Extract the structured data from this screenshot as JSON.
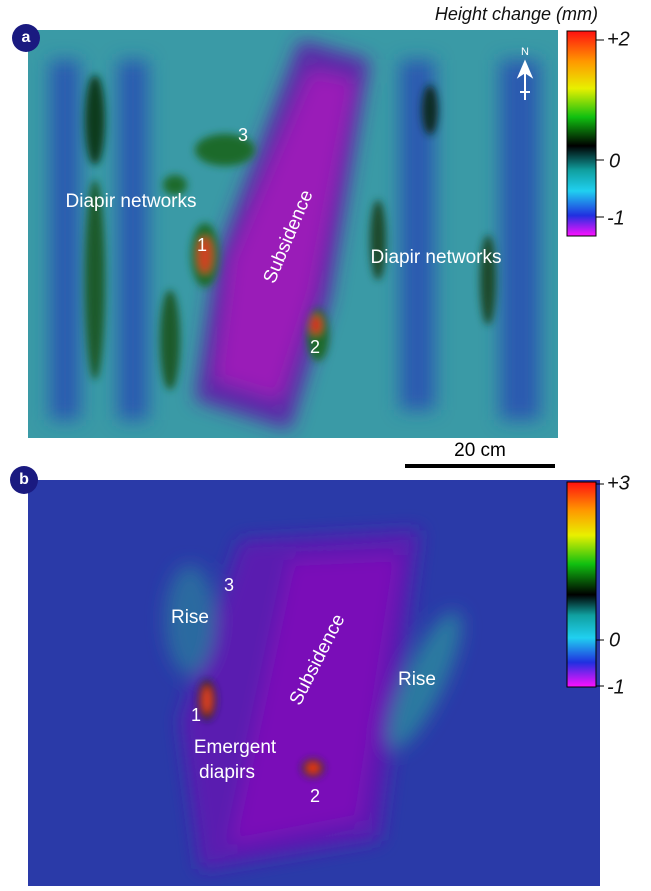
{
  "figure": {
    "legend_title": "Height change (mm)",
    "scale_bar": "20 cm"
  },
  "panels": [
    {
      "label": "a",
      "annotations": [
        "Diapir networks",
        "Diapir networks",
        "Subsidence",
        "1",
        "2",
        "3"
      ],
      "north": "N",
      "colorbar_ticks": [
        "+2",
        "0",
        "-1"
      ]
    },
    {
      "label": "b",
      "annotations": [
        "Rise",
        "Rise",
        "Subsidence",
        "Emergent",
        "diapirs",
        "1",
        "2",
        "3"
      ],
      "colorbar_ticks": [
        "+3",
        "0",
        "-1"
      ]
    }
  ]
}
